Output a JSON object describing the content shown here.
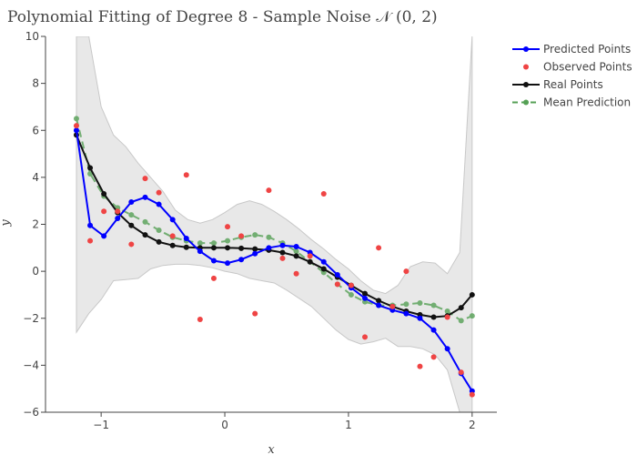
{
  "chart_data": {
    "type": "line",
    "title": "Polynomial Fitting of Degree 8 - Sample Noise 𝒩 (0, 2)",
    "xlabel": "x",
    "ylabel": "y",
    "xlim": [
      -1.45,
      2.2
    ],
    "ylim": [
      -6,
      10
    ],
    "xticks": [
      -1,
      0,
      1,
      2
    ],
    "yticks": [
      -6,
      -4,
      -2,
      0,
      2,
      4,
      6,
      8,
      10
    ],
    "grid": false,
    "legend_position": "top-right",
    "colors": {
      "predicted": "#0000ff",
      "observed": "#ef4444",
      "real": "#111111",
      "mean": "#55a055",
      "band": "#d9d9d9"
    },
    "legend": [
      "Predicted Points",
      "Observed Points",
      "Real Points",
      "Mean Prediction"
    ],
    "confidence_band": {
      "x": [
        -1.2,
        -1.1,
        -1.0,
        -0.9,
        -0.8,
        -0.7,
        -0.6,
        -0.5,
        -0.4,
        -0.3,
        -0.2,
        -0.1,
        0.0,
        0.1,
        0.2,
        0.3,
        0.4,
        0.5,
        0.6,
        0.7,
        0.8,
        0.9,
        1.0,
        1.1,
        1.2,
        1.3,
        1.4,
        1.5,
        1.6,
        1.7,
        1.8,
        1.9,
        2.0
      ],
      "upper": [
        10,
        10,
        7.0,
        5.8,
        5.3,
        4.6,
        4.0,
        3.4,
        2.6,
        2.2,
        2.05,
        2.2,
        2.5,
        2.85,
        3.0,
        2.85,
        2.55,
        2.2,
        1.8,
        1.35,
        0.95,
        0.5,
        0.1,
        -0.4,
        -0.8,
        -0.95,
        -0.6,
        0.2,
        0.4,
        0.35,
        -0.1,
        0.8,
        10
      ],
      "lower": [
        -2.6,
        -1.8,
        -1.2,
        -0.4,
        -0.35,
        -0.3,
        0.1,
        0.25,
        0.3,
        0.3,
        0.25,
        0.15,
        0.0,
        -0.1,
        -0.3,
        -0.4,
        -0.5,
        -0.8,
        -1.15,
        -1.5,
        -2.0,
        -2.5,
        -2.9,
        -3.1,
        -3.0,
        -2.85,
        -3.2,
        -3.2,
        -3.3,
        -3.55,
        -4.2,
        -6.0,
        -6.0
      ]
    },
    "series": [
      {
        "name": "Predicted Points",
        "x": [
          -1.2,
          -1.089,
          -0.978,
          -0.867,
          -0.756,
          -0.644,
          -0.533,
          -0.422,
          -0.311,
          -0.2,
          -0.089,
          0.022,
          0.133,
          0.244,
          0.356,
          0.467,
          0.578,
          0.689,
          0.8,
          0.911,
          1.022,
          1.133,
          1.244,
          1.356,
          1.467,
          1.578,
          1.689,
          1.8,
          1.911,
          2.0
        ],
        "y": [
          6.0,
          1.95,
          1.5,
          2.25,
          2.95,
          3.15,
          2.85,
          2.2,
          1.4,
          0.85,
          0.45,
          0.35,
          0.5,
          0.75,
          1.0,
          1.1,
          1.05,
          0.8,
          0.4,
          -0.15,
          -0.7,
          -1.15,
          -1.45,
          -1.65,
          -1.8,
          -2.0,
          -2.5,
          -3.3,
          -4.35,
          -5.1
        ]
      },
      {
        "name": "Observed Points",
        "x": [
          -1.2,
          -1.089,
          -0.978,
          -0.867,
          -0.756,
          -0.644,
          -0.533,
          -0.422,
          -0.311,
          -0.2,
          -0.089,
          0.022,
          0.133,
          0.244,
          0.356,
          0.467,
          0.578,
          0.689,
          0.8,
          0.911,
          1.022,
          1.133,
          1.244,
          1.356,
          1.467,
          1.578,
          1.689,
          1.8,
          1.911,
          2.0
        ],
        "y": [
          6.2,
          1.3,
          2.55,
          2.55,
          1.15,
          3.95,
          3.35,
          1.5,
          4.1,
          -2.05,
          -0.3,
          1.9,
          1.5,
          -1.8,
          3.45,
          0.55,
          -0.1,
          0.65,
          3.3,
          -0.55,
          -0.6,
          -2.8,
          1.0,
          -1.5,
          0.0,
          -4.05,
          -3.65,
          -1.95,
          -4.3,
          -5.25
        ]
      },
      {
        "name": "Real Points",
        "x": [
          -1.2,
          -1.089,
          -0.978,
          -0.867,
          -0.756,
          -0.644,
          -0.533,
          -0.422,
          -0.311,
          -0.2,
          -0.089,
          0.022,
          0.133,
          0.244,
          0.356,
          0.467,
          0.578,
          0.689,
          0.8,
          0.911,
          1.022,
          1.133,
          1.244,
          1.356,
          1.467,
          1.578,
          1.689,
          1.8,
          1.911,
          2.0
        ],
        "y": [
          5.8,
          4.4,
          3.3,
          2.5,
          1.95,
          1.55,
          1.25,
          1.1,
          1.02,
          1.0,
          1.0,
          1.0,
          0.98,
          0.95,
          0.9,
          0.8,
          0.65,
          0.4,
          0.1,
          -0.25,
          -0.6,
          -0.95,
          -1.25,
          -1.5,
          -1.7,
          -1.85,
          -1.95,
          -1.9,
          -1.55,
          -1.0
        ]
      },
      {
        "name": "Mean Prediction",
        "x": [
          -1.2,
          -1.089,
          -0.978,
          -0.867,
          -0.756,
          -0.644,
          -0.533,
          -0.422,
          -0.311,
          -0.2,
          -0.089,
          0.022,
          0.133,
          0.244,
          0.356,
          0.467,
          0.578,
          0.689,
          0.8,
          0.911,
          1.022,
          1.133,
          1.244,
          1.356,
          1.467,
          1.578,
          1.689,
          1.8,
          1.911,
          2.0
        ],
        "y": [
          6.5,
          4.15,
          3.2,
          2.7,
          2.4,
          2.1,
          1.75,
          1.45,
          1.3,
          1.2,
          1.2,
          1.3,
          1.45,
          1.55,
          1.45,
          1.2,
          0.85,
          0.4,
          -0.05,
          -0.55,
          -1.0,
          -1.3,
          -1.45,
          -1.45,
          -1.4,
          -1.35,
          -1.45,
          -1.7,
          -2.1,
          -1.9
        ]
      }
    ]
  }
}
